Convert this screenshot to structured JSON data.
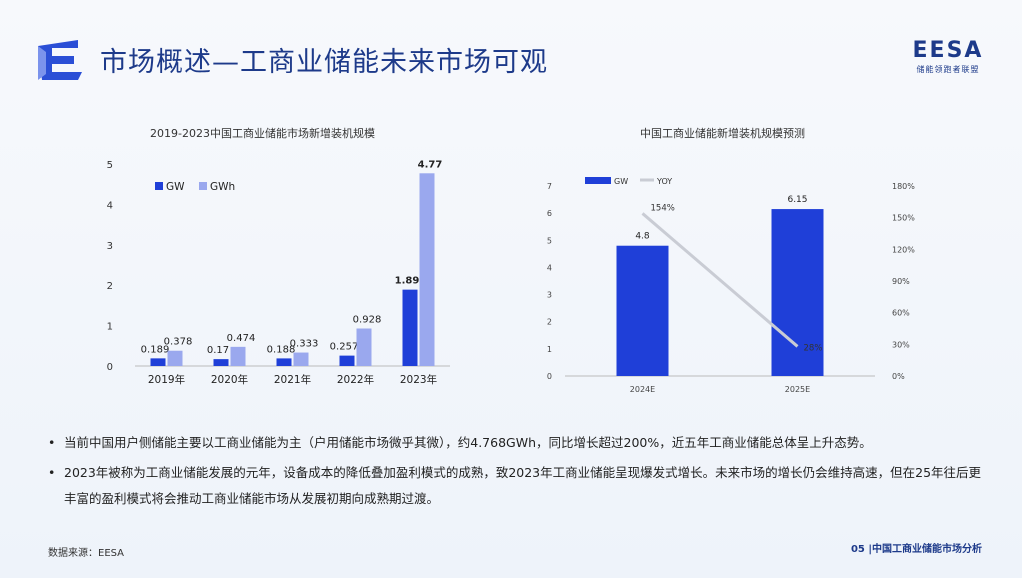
{
  "header": {
    "title": "市场概述—工商业储能未来市场可观",
    "brand": {
      "mark": "EESA",
      "sub": "储能领跑者联盟"
    }
  },
  "chart_data": [
    {
      "type": "bar",
      "title": "2019-2023中国工商业储能市场新增装机规模",
      "categories": [
        "2019年",
        "2020年",
        "2021年",
        "2022年",
        "2023年"
      ],
      "series": [
        {
          "name": "GW",
          "values": [
            0.189,
            0.17,
            0.188,
            0.257,
            1.89
          ],
          "labels": [
            "0.189",
            "0.17",
            "0.188",
            "0.257",
            "1.89"
          ]
        },
        {
          "name": "GWh",
          "values": [
            0.378,
            0.474,
            0.333,
            0.928,
            4.77
          ],
          "labels": [
            "0.378",
            "0.474",
            "0.333",
            "0.928",
            "4.77"
          ]
        }
      ],
      "ylim": [
        0,
        5
      ],
      "yticks": [
        "0",
        "1",
        "2",
        "3",
        "4",
        "5"
      ],
      "grid": false,
      "legend": "top-left"
    },
    {
      "type": "bar",
      "title": "中国工商业储能新增装机规模预测",
      "categories": [
        "2024E",
        "2025E"
      ],
      "series": [
        {
          "name": "GW",
          "type": "bar",
          "values": [
            4.8,
            6.15
          ],
          "labels": [
            "4.8",
            "6.15"
          ]
        },
        {
          "name": "YOY",
          "type": "line",
          "axis": "right",
          "values": [
            154,
            28
          ],
          "labels": [
            "154%",
            "28%"
          ]
        }
      ],
      "ylim": [
        0,
        7
      ],
      "yticks": [
        "0",
        "1",
        "2",
        "3",
        "4",
        "5",
        "6",
        "7"
      ],
      "y2lim": [
        0,
        180
      ],
      "y2ticks": [
        "0%",
        "30%",
        "60%",
        "90%",
        "120%",
        "150%",
        "180%"
      ],
      "grid": false,
      "legend": "top-left"
    }
  ],
  "bullets": [
    "当前中国用户侧储能主要以工商业储能为主（户用储能市场微乎其微），约4.768GWh，同比增长超过200%，近五年工商业储能总体呈上升态势。",
    "2023年被称为工商业储能发展的元年，设备成本的降低叠加盈利模式的成熟，致2023年工商业储能呈现爆发式增长。未来市场的增长仍会维持高速，但在25年往后更丰富的盈利模式将会推动工商业储能市场从发展初期向成熟期过渡。"
  ],
  "source": "数据来源：EESA",
  "footer": "05 |中国工商业储能市场分析",
  "colors": {
    "gw": "#1f3fd8",
    "gwh": "#9aa8ee",
    "yoy": "#c9ccd4",
    "title": "#1d3a8a"
  }
}
